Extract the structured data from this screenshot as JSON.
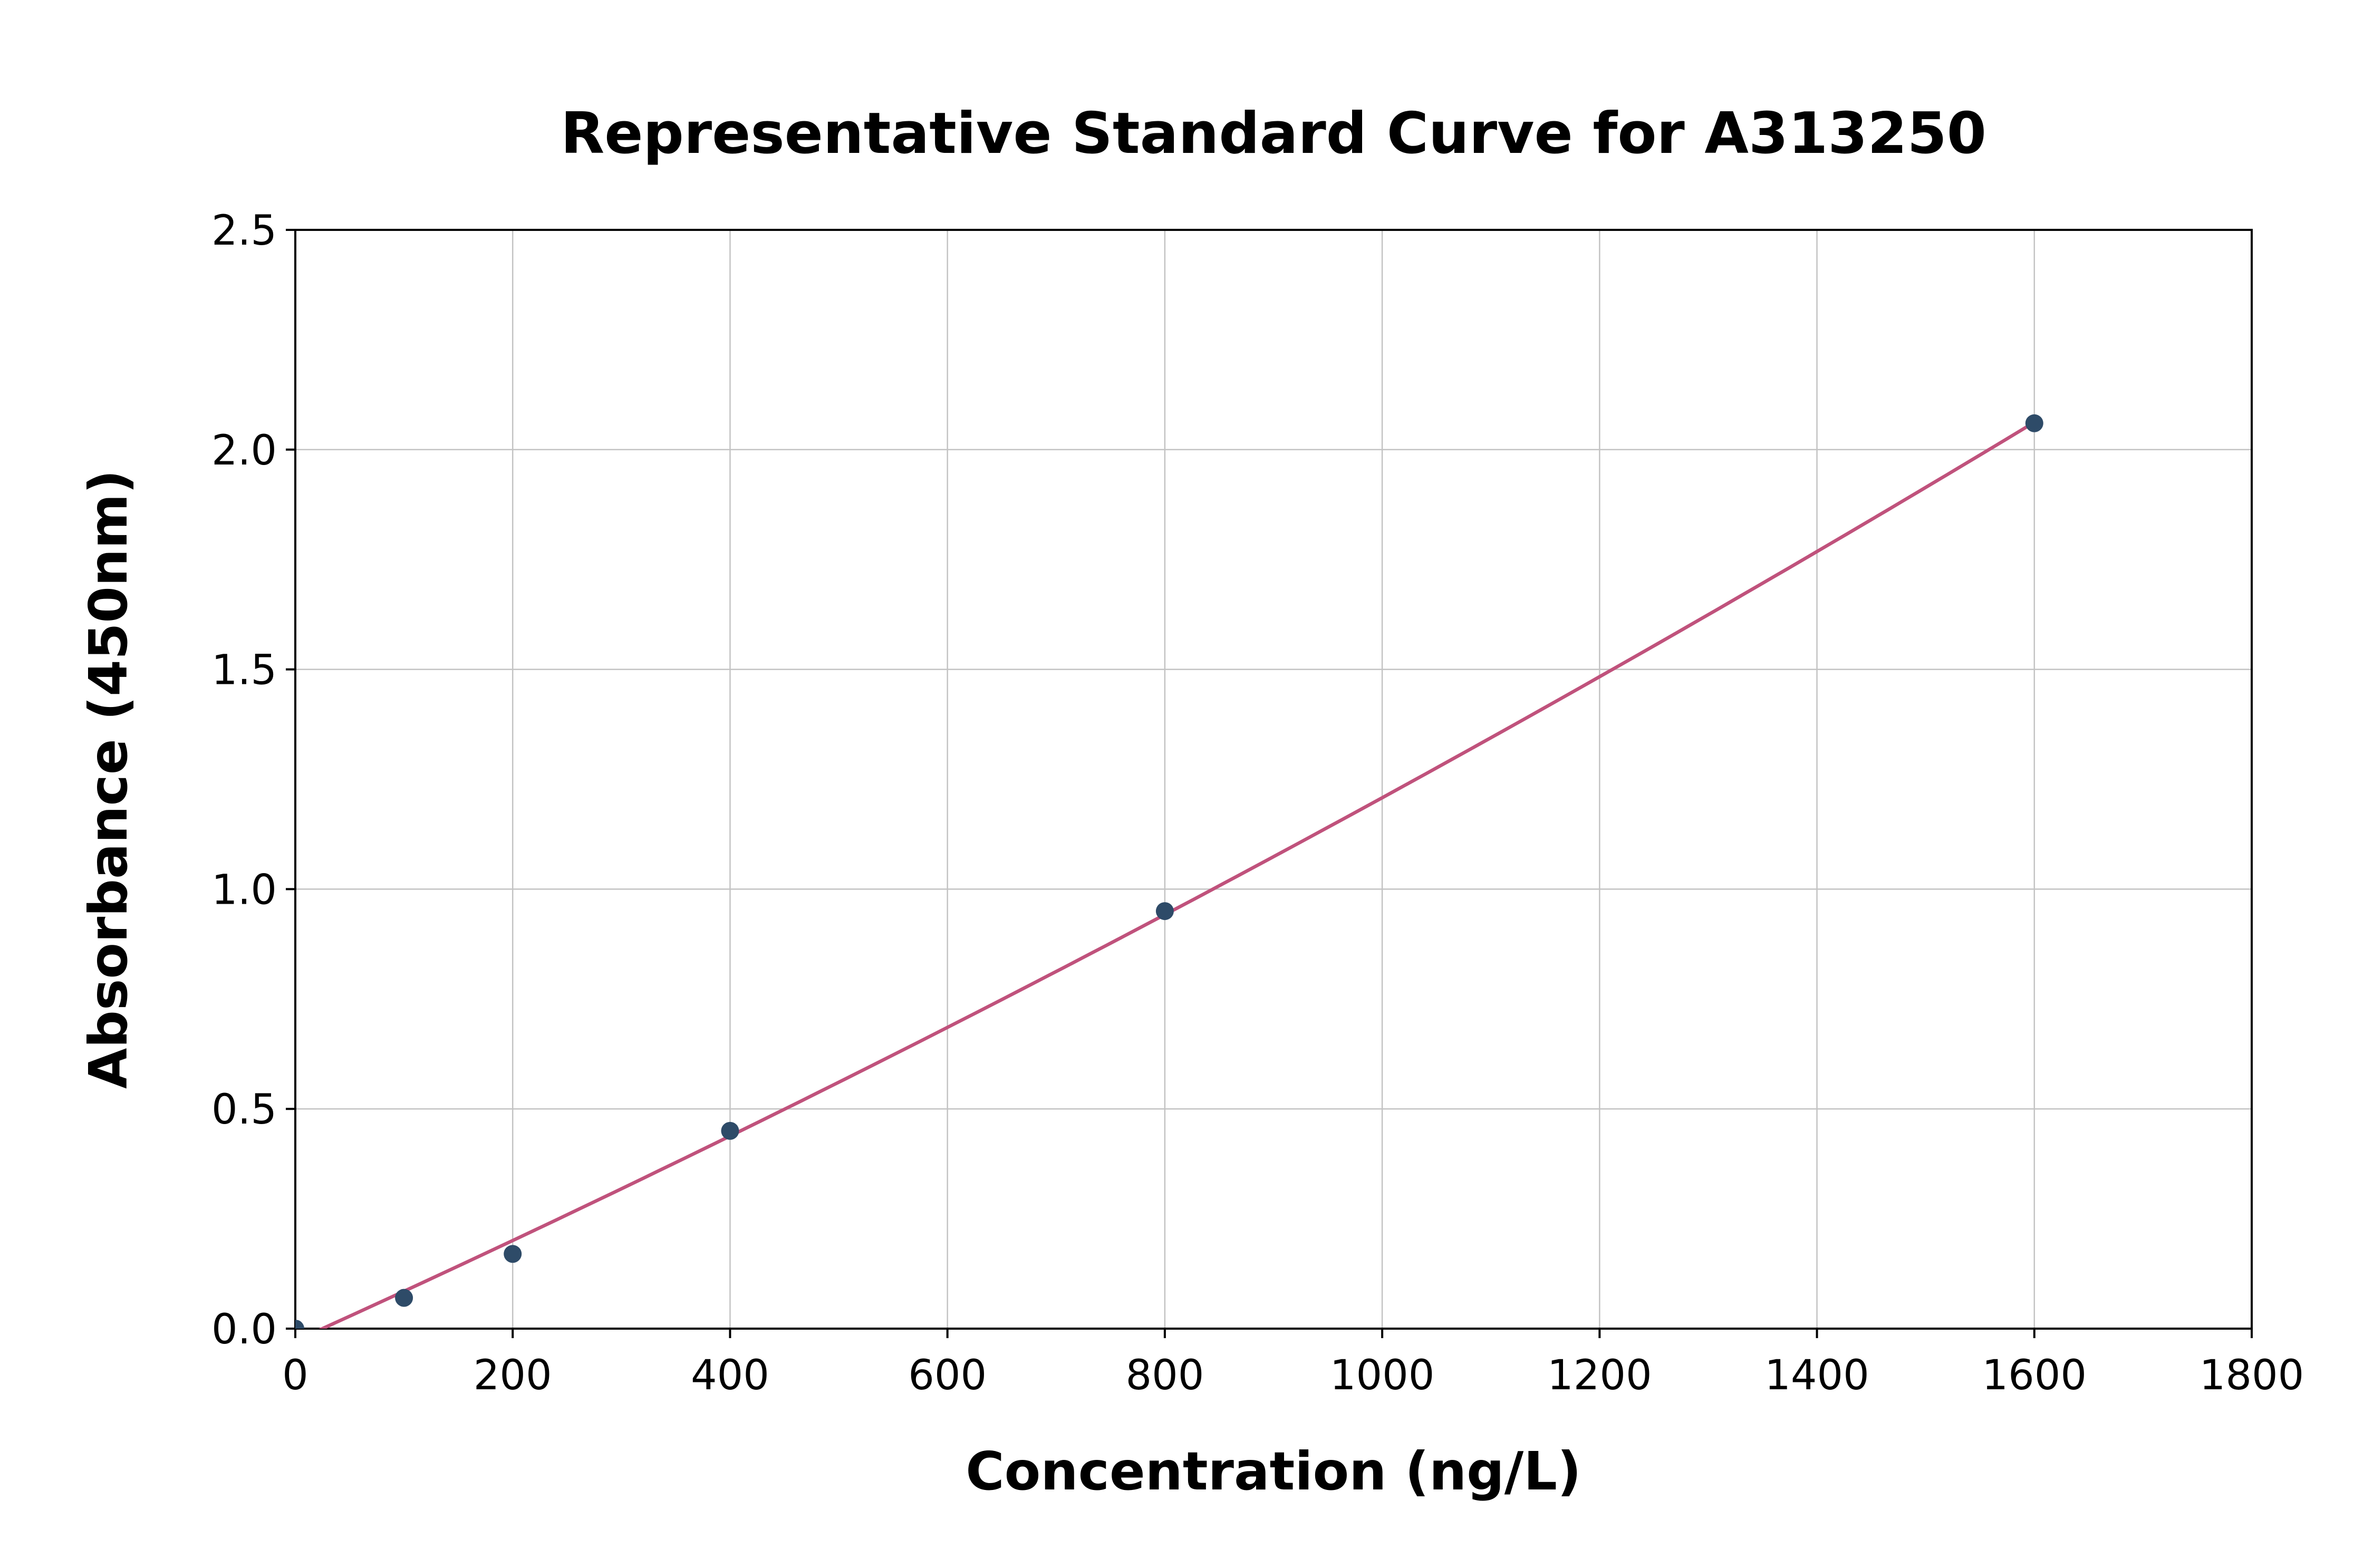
{
  "figure": {
    "background": "#ffffff"
  },
  "chart_data": {
    "type": "scatter",
    "title": "Representative Standard Curve for A313250",
    "xlabel": "Concentration (ng/L)",
    "ylabel": "Absorbance (450nm)",
    "xlim": [
      0,
      1800
    ],
    "ylim": [
      0.0,
      2.5
    ],
    "x_ticks": [
      0,
      200,
      400,
      600,
      800,
      1000,
      1200,
      1400,
      1600,
      1800
    ],
    "y_ticks": [
      0.0,
      0.5,
      1.0,
      1.5,
      2.0,
      2.5
    ],
    "grid": true,
    "legend": "none",
    "points": [
      {
        "x": 0,
        "y": 0.0
      },
      {
        "x": 100,
        "y": 0.07
      },
      {
        "x": 200,
        "y": 0.17
      },
      {
        "x": 400,
        "y": 0.45
      },
      {
        "x": 800,
        "y": 0.95
      },
      {
        "x": 1600,
        "y": 2.06
      }
    ],
    "fit": {
      "kind": "quadratic",
      "x_start": 0,
      "x_end": 1600
    },
    "colors": {
      "curve": "#c0527c",
      "marker": "#2e4b68",
      "grid": "#c3c3c3",
      "axis": "#000000",
      "text": "#000000"
    }
  }
}
